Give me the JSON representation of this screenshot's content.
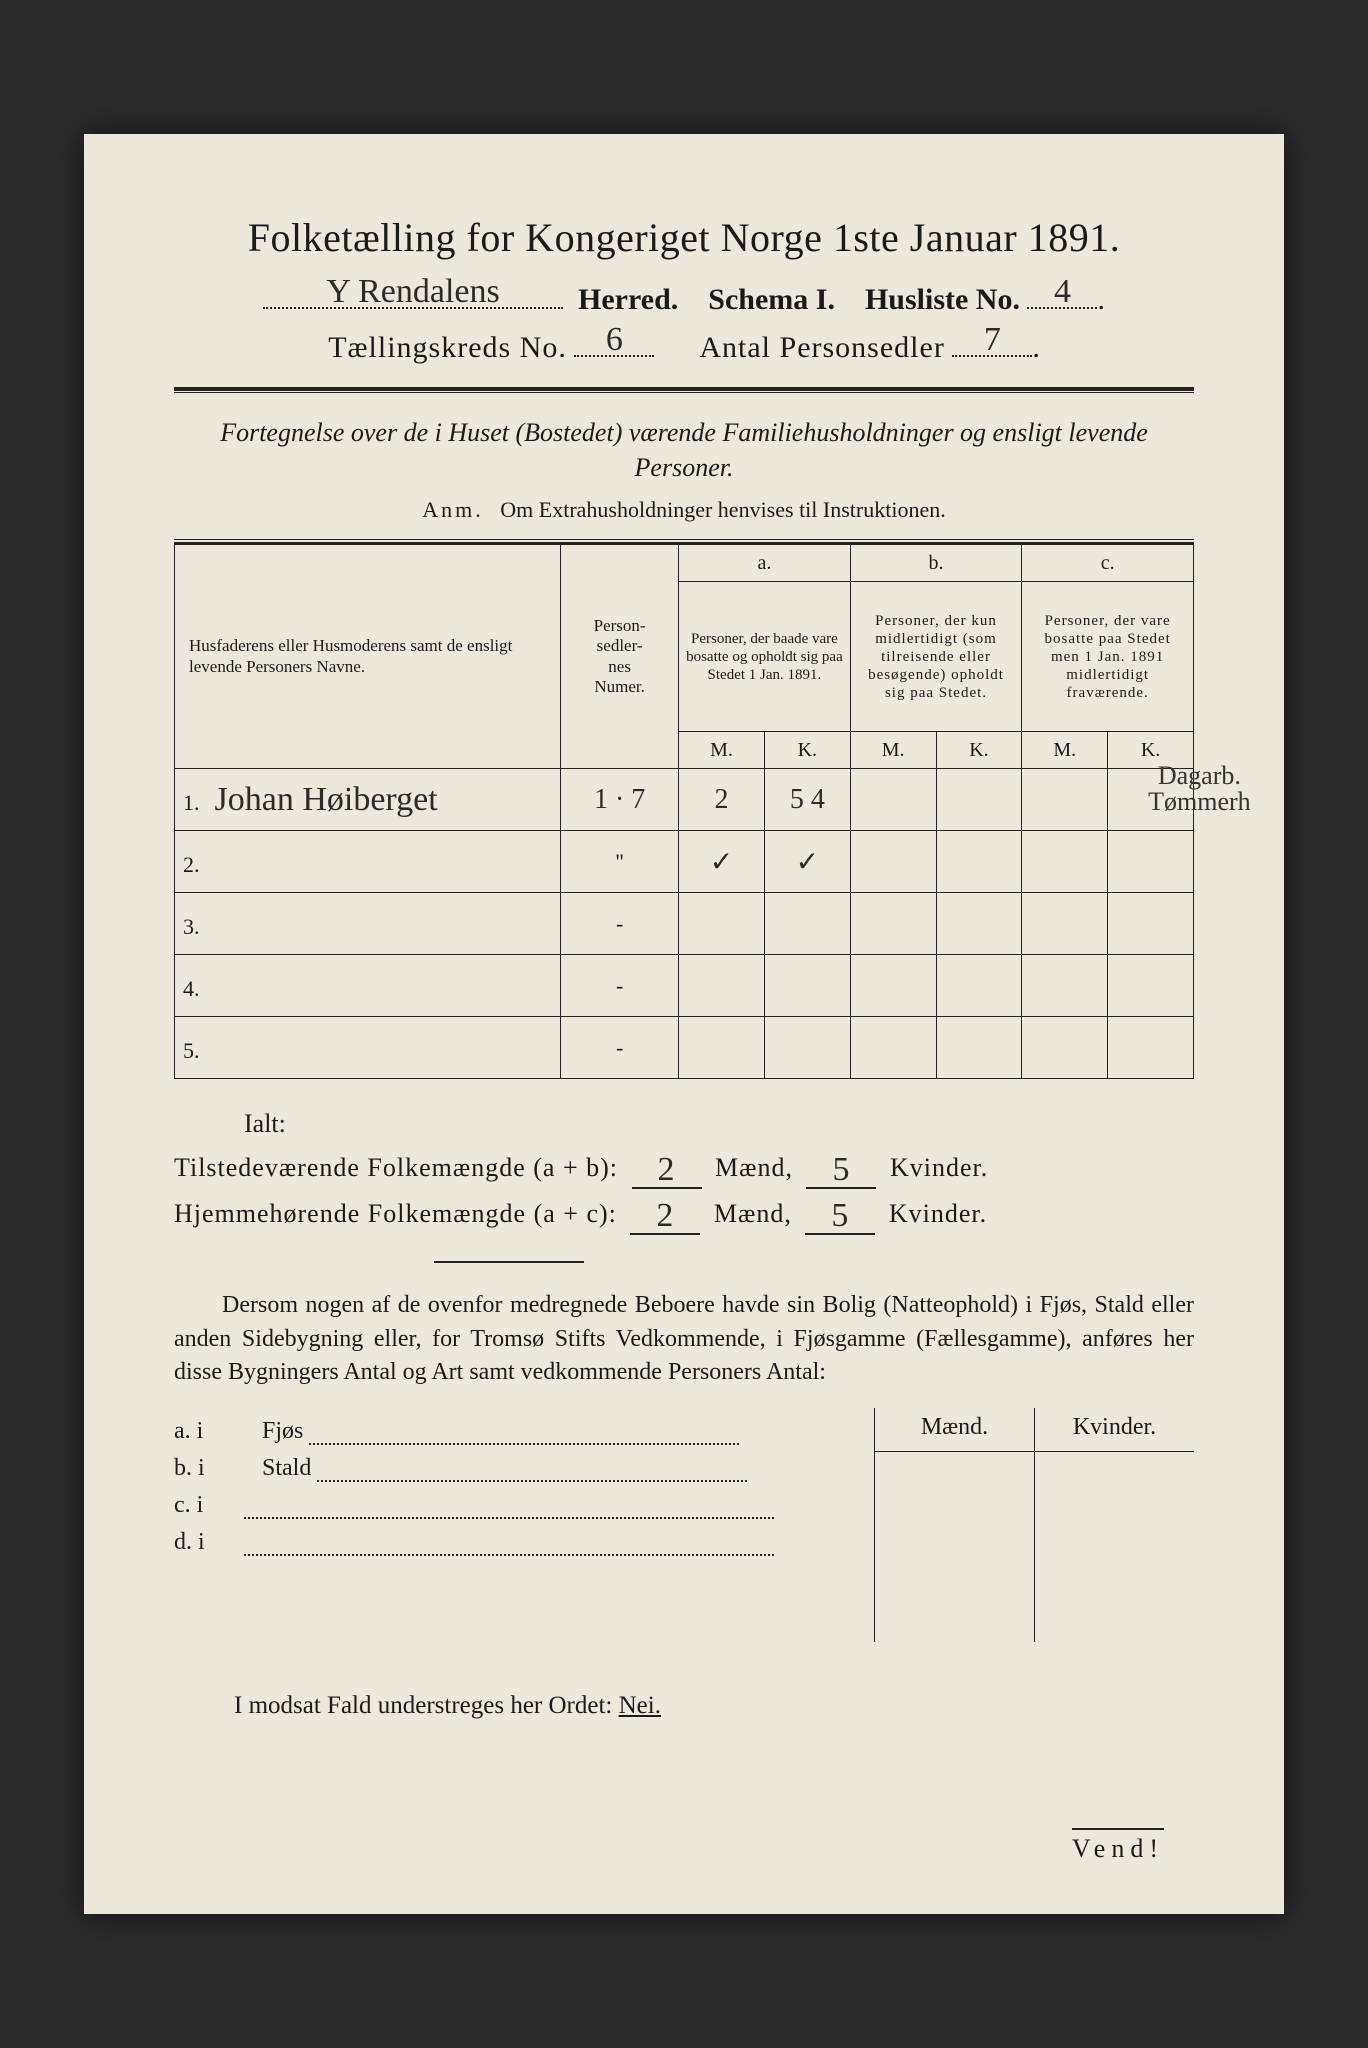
{
  "header": {
    "title": "Folketælling for Kongeriget Norge 1ste Januar 1891.",
    "herred_hand": "Y Rendalens",
    "herred_label": "Herred.",
    "schema_label": "Schema I.",
    "husliste_label": "Husliste No.",
    "husliste_hand": "4",
    "kreds_label": "Tællingskreds No.",
    "kreds_hand": "6",
    "antal_label": "Antal Personsedler",
    "antal_hand": "7"
  },
  "subtitle": "Fortegnelse over de i Huset (Bostedet) værende Familiehusholdninger og ensligt levende Personer.",
  "anm_prefix": "Anm.",
  "anm_text": "Om Extrahusholdninger henvises til Instruktionen.",
  "table": {
    "columns": {
      "name": "Husfaderens eller Husmoderens samt de ensligt levende Personers Navne.",
      "numer": "Person-\nsedler-\nnes\nNumer.",
      "a_label": "a.",
      "a_text": "Personer, der baade vare bosatte og opholdt sig paa Stedet 1 Jan. 1891.",
      "b_label": "b.",
      "b_text": "Personer, der kun midlertidigt (som tilreisende eller besøgende) opholdt sig paa Stedet.",
      "c_label": "c.",
      "c_text": "Personer, der vare bosatte paa Stedet men 1 Jan. 1891 midlertidigt fraværende.",
      "M": "M.",
      "K": "K."
    },
    "rows": [
      {
        "n": "1.",
        "name_hand": "Johan Høiberget",
        "numer_hand": "1 · 7",
        "aM": "2",
        "aK": "5 4",
        "bM": "",
        "bK": "",
        "cM": "",
        "cK": "",
        "note_hand": "Dagarb.\nTømmerh"
      },
      {
        "n": "2.",
        "name_hand": "",
        "numer_hand": "''",
        "aM": "✓",
        "aK": "✓",
        "bM": "",
        "bK": "",
        "cM": "",
        "cK": "",
        "note_hand": ""
      },
      {
        "n": "3.",
        "name_hand": "",
        "numer_hand": "-",
        "aM": "",
        "aK": "",
        "bM": "",
        "bK": "",
        "cM": "",
        "cK": "",
        "note_hand": ""
      },
      {
        "n": "4.",
        "name_hand": "",
        "numer_hand": "-",
        "aM": "",
        "aK": "",
        "bM": "",
        "bK": "",
        "cM": "",
        "cK": "",
        "note_hand": ""
      },
      {
        "n": "5.",
        "name_hand": "",
        "numer_hand": "-",
        "aM": "",
        "aK": "",
        "bM": "",
        "bK": "",
        "cM": "",
        "cK": "",
        "note_hand": ""
      }
    ]
  },
  "totals": {
    "ialt": "Ialt:",
    "line1_label": "Tilstedeværende Folkemængde (a + b):",
    "line2_label": "Hjemmehørende Folkemængde (a + c):",
    "maend": "Mænd,",
    "kvinder": "Kvinder.",
    "l1_m": "2",
    "l1_k": "5",
    "l2_m": "2",
    "l2_k": "5"
  },
  "paragraph": "Dersom nogen af de ovenfor medregnede Beboere havde sin Bolig (Natteophold) i Fjøs, Stald eller anden Sidebygning eller, for Tromsø Stifts Vedkommende, i Fjøsgamme (Fællesgamme), anføres her disse Bygningers Antal og Art samt vedkommende Personers Antal:",
  "lower": {
    "maend": "Mænd.",
    "kvinder": "Kvinder.",
    "rows": [
      {
        "lead": "a.  i",
        "label": "Fjøs"
      },
      {
        "lead": "b.  i",
        "label": "Stald"
      },
      {
        "lead": "c.  i",
        "label": ""
      },
      {
        "lead": "d.  i",
        "label": ""
      }
    ]
  },
  "final_line_pre": "I modsat Fald understreges her Ordet: ",
  "final_line_word": "Nei.",
  "vend": "Vend!",
  "colors": {
    "paper": "#ece8dc",
    "ink": "#1a1a1a",
    "outer": "#2a2a2a"
  }
}
